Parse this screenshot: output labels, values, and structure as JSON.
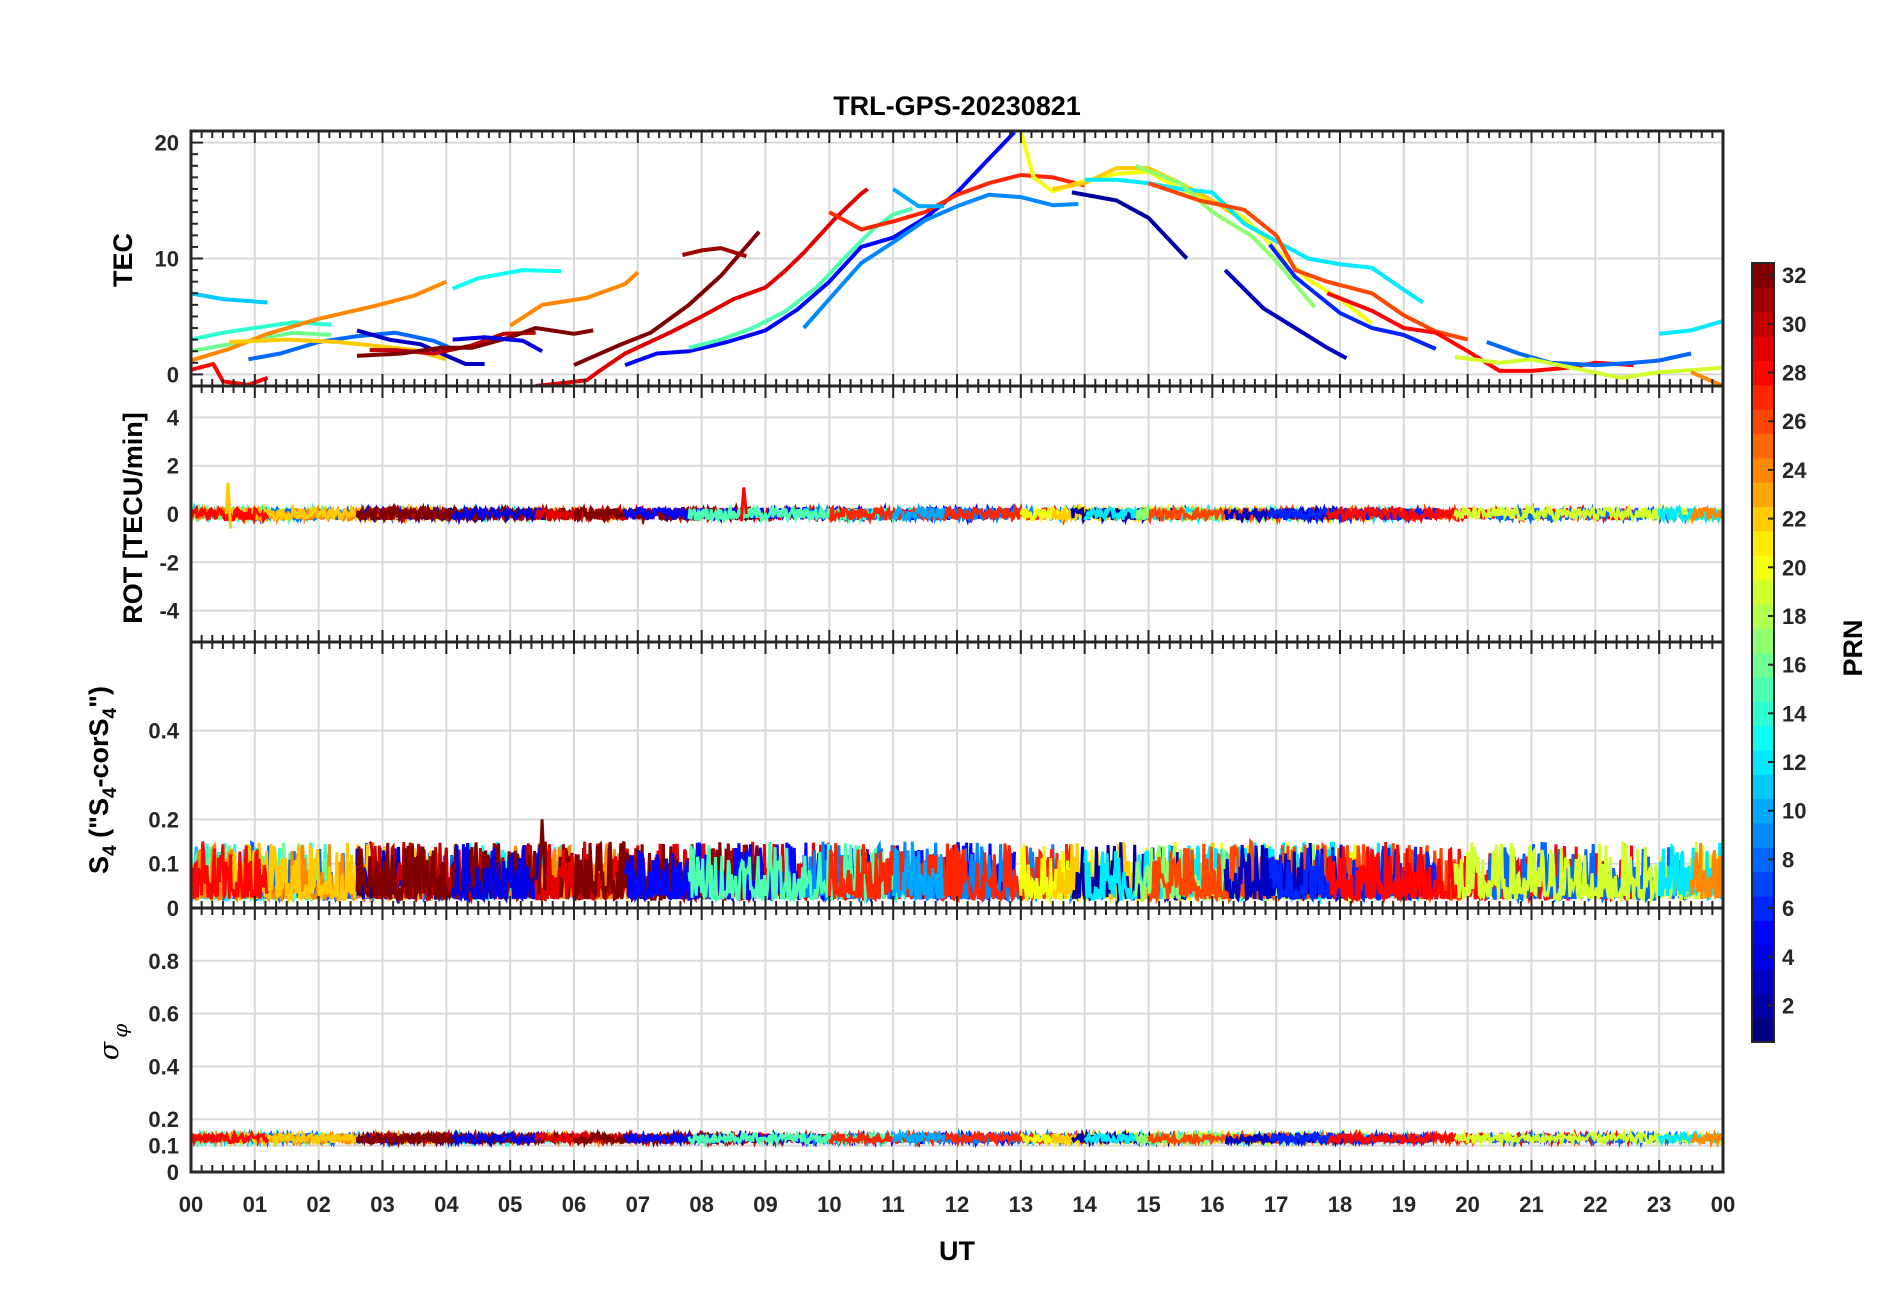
{
  "chart_data": [
    {
      "panel": "tec",
      "type": "line",
      "title": "TRL-GPS-20230821",
      "ylabel": "TEC",
      "ylim": [
        -1,
        21
      ],
      "yticks": [
        0,
        10,
        20
      ],
      "series": [
        {
          "prn": 11,
          "points": [
            [
              0,
              7
            ],
            [
              0.5,
              6.5
            ],
            [
              1.2,
              6.2
            ]
          ]
        },
        {
          "prn": 13,
          "points": [
            [
              4.1,
              7.4
            ],
            [
              4.5,
              8.3
            ],
            [
              5.2,
              9
            ],
            [
              5.8,
              8.9
            ]
          ]
        },
        {
          "prn": 14,
          "points": [
            [
              0,
              3
            ],
            [
              0.5,
              3.6
            ],
            [
              1,
              4
            ],
            [
              1.6,
              4.5
            ],
            [
              2.2,
              4.3
            ]
          ]
        },
        {
          "prn": 16,
          "points": [
            [
              0,
              2
            ],
            [
              0.5,
              2.5
            ],
            [
              1,
              3
            ],
            [
              1.6,
              3.6
            ],
            [
              2.2,
              3.4
            ]
          ]
        },
        {
          "prn": 8,
          "points": [
            [
              0.9,
              1.3
            ],
            [
              1.4,
              1.8
            ],
            [
              2,
              2.8
            ],
            [
              2.6,
              3.3
            ],
            [
              3.2,
              3.6
            ],
            [
              3.8,
              2.9
            ],
            [
              4.1,
              2.2
            ]
          ]
        },
        {
          "prn": 24,
          "points": [
            [
              0,
              1.2
            ],
            [
              0.6,
              2.2
            ],
            [
              1.2,
              3.5
            ],
            [
              2,
              4.8
            ],
            [
              2.8,
              5.8
            ],
            [
              3.5,
              6.8
            ],
            [
              4,
              8
            ]
          ]
        },
        {
          "prn": 24,
          "points": [
            [
              5,
              4.2
            ],
            [
              5.5,
              6
            ],
            [
              6.2,
              6.6
            ],
            [
              6.8,
              7.8
            ],
            [
              7,
              8.8
            ]
          ]
        },
        {
          "prn": 22,
          "points": [
            [
              0.6,
              2.8
            ],
            [
              1.5,
              3
            ],
            [
              2.3,
              2.8
            ],
            [
              3,
              2.4
            ],
            [
              3.5,
              2.1
            ],
            [
              4,
              1.3
            ]
          ]
        },
        {
          "prn": 28,
          "points": [
            [
              0,
              0.4
            ],
            [
              0.35,
              0.9
            ],
            [
              0.5,
              -0.6
            ],
            [
              0.9,
              -0.9
            ],
            [
              1.2,
              -0.3
            ]
          ]
        },
        {
          "prn": 3,
          "points": [
            [
              2.6,
              3.8
            ],
            [
              3.1,
              3
            ],
            [
              3.6,
              2.6
            ],
            [
              4.3,
              0.9
            ],
            [
              4.6,
              0.9
            ]
          ]
        },
        {
          "prn": 30,
          "points": [
            [
              2.8,
              2.1
            ],
            [
              3.2,
              2.1
            ],
            [
              3.8,
              1.8
            ],
            [
              4.4,
              2.5
            ],
            [
              4.9,
              3.5
            ],
            [
              5.4,
              3.6
            ]
          ]
        },
        {
          "prn": 32,
          "points": [
            [
              2.6,
              1.6
            ],
            [
              3.3,
              1.8
            ],
            [
              3.9,
              2.3
            ],
            [
              4.4,
              2.3
            ],
            [
              5,
              3.2
            ],
            [
              5.4,
              4
            ],
            [
              6,
              3.5
            ],
            [
              6.3,
              3.8
            ]
          ]
        },
        {
          "prn": 4,
          "points": [
            [
              4.1,
              3
            ],
            [
              4.6,
              3.2
            ],
            [
              5.2,
              2.9
            ],
            [
              5.5,
              2
            ]
          ]
        },
        {
          "prn": 29,
          "points": [
            [
              5.4,
              -1
            ],
            [
              5.9,
              -0.7
            ],
            [
              6.2,
              -0.5
            ],
            [
              6.4,
              0.3
            ],
            [
              6.8,
              1.8
            ],
            [
              7.5,
              3.6
            ],
            [
              8,
              5
            ],
            [
              8.5,
              6.5
            ],
            [
              9,
              7.5
            ],
            [
              9.3,
              8.9
            ],
            [
              9.6,
              10.5
            ],
            [
              10.1,
              13.5
            ],
            [
              10.5,
              15.6
            ],
            [
              10.6,
              16
            ]
          ]
        },
        {
          "prn": 32,
          "points": [
            [
              6,
              0.8
            ],
            [
              6.7,
              2.5
            ],
            [
              7.2,
              3.6
            ],
            [
              7.8,
              6
            ],
            [
              8.3,
              8.5
            ],
            [
              8.9,
              12.3
            ]
          ]
        },
        {
          "prn": 31,
          "points": [
            [
              7.7,
              10.3
            ],
            [
              8,
              10.7
            ],
            [
              8.3,
              10.9
            ],
            [
              8.7,
              10.2
            ]
          ]
        },
        {
          "prn": 5,
          "points": [
            [
              6.8,
              0.8
            ],
            [
              7.3,
              1.8
            ],
            [
              7.8,
              2
            ],
            [
              8.4,
              2.8
            ],
            [
              9,
              3.8
            ],
            [
              9.5,
              5.6
            ],
            [
              10,
              8
            ],
            [
              10.5,
              11
            ],
            [
              11,
              11.8
            ],
            [
              11.5,
              13.5
            ],
            [
              12,
              15.7
            ],
            [
              12.5,
              18.6
            ],
            [
              12.9,
              20.9
            ]
          ]
        },
        {
          "prn": 9,
          "points": [
            [
              9.6,
              4
            ],
            [
              10,
              6.5
            ],
            [
              10.5,
              9.6
            ],
            [
              11,
              11.4
            ],
            [
              11.5,
              13.3
            ],
            [
              12,
              14.5
            ],
            [
              12.5,
              15.5
            ],
            [
              13,
              15.3
            ],
            [
              13.5,
              14.6
            ],
            [
              13.9,
              14.7
            ]
          ]
        },
        {
          "prn": 15,
          "points": [
            [
              7.8,
              2.3
            ],
            [
              8.3,
              3
            ],
            [
              8.8,
              4
            ],
            [
              9.3,
              5.4
            ],
            [
              9.8,
              7.5
            ],
            [
              10.3,
              10.4
            ],
            [
              10.7,
              12.6
            ],
            [
              11,
              13.8
            ],
            [
              11.3,
              14.3
            ]
          ]
        },
        {
          "prn": 27,
          "points": [
            [
              10,
              14
            ],
            [
              10.5,
              12.5
            ],
            [
              11,
              13.2
            ],
            [
              11.5,
              14
            ],
            [
              12,
              15.5
            ],
            [
              12.5,
              16.5
            ],
            [
              13,
              17.2
            ],
            [
              13.5,
              17
            ],
            [
              14,
              16.3
            ]
          ]
        },
        {
          "prn": 10,
          "points": [
            [
              11,
              16
            ],
            [
              11.4,
              14.5
            ],
            [
              11.8,
              14.5
            ]
          ]
        },
        {
          "prn": 20,
          "points": [
            [
              13,
              21
            ],
            [
              13.2,
              17
            ],
            [
              13.5,
              15.8
            ],
            [
              14,
              16.7
            ],
            [
              14.5,
              17.3
            ],
            [
              15,
              17.5
            ],
            [
              15.5,
              16
            ],
            [
              16,
              15
            ],
            [
              16.5,
              13.5
            ],
            [
              16.9,
              11.3
            ],
            [
              17.5,
              8.2
            ],
            [
              18,
              6.5
            ],
            [
              18.5,
              4.4
            ]
          ]
        },
        {
          "prn": 22,
          "points": [
            [
              13.5,
              16
            ],
            [
              14,
              16.5
            ],
            [
              14.5,
              17.8
            ],
            [
              15,
              17.8
            ],
            [
              15.5,
              16.5
            ],
            [
              16,
              15
            ],
            [
              16.4,
              13.6
            ]
          ]
        },
        {
          "prn": 2,
          "points": [
            [
              13.8,
              15.7
            ],
            [
              14.5,
              15
            ],
            [
              15,
              13.5
            ],
            [
              15.6,
              10
            ]
          ]
        },
        {
          "prn": 12,
          "points": [
            [
              14,
              16.8
            ],
            [
              14.5,
              16.8
            ],
            [
              15,
              16.5
            ],
            [
              15.5,
              16
            ],
            [
              16,
              15.7
            ],
            [
              16.5,
              13
            ],
            [
              17,
              11.5
            ],
            [
              17.5,
              10
            ],
            [
              18,
              9.5
            ],
            [
              18.5,
              9.2
            ],
            [
              19,
              7.3
            ],
            [
              19.3,
              6.2
            ]
          ]
        },
        {
          "prn": 17,
          "points": [
            [
              14.8,
              18
            ],
            [
              15.5,
              16.5
            ],
            [
              16,
              14
            ],
            [
              16.6,
              12
            ],
            [
              17,
              9.8
            ],
            [
              17.6,
              5.8
            ]
          ]
        },
        {
          "prn": 26,
          "points": [
            [
              15,
              16.5
            ],
            [
              15.8,
              15
            ],
            [
              16.5,
              14.2
            ],
            [
              17,
              12
            ],
            [
              17.3,
              9
            ],
            [
              17.8,
              8
            ],
            [
              18.5,
              7
            ],
            [
              19,
              5.1
            ],
            [
              19.5,
              3.7
            ],
            [
              20,
              3
            ]
          ]
        },
        {
          "prn": 3,
          "points": [
            [
              16.2,
              9
            ],
            [
              16.8,
              5.7
            ],
            [
              17.3,
              4
            ],
            [
              17.8,
              2.3
            ],
            [
              18.1,
              1.4
            ]
          ]
        },
        {
          "prn": 6,
          "points": [
            [
              16.9,
              11.2
            ],
            [
              17.3,
              8.4
            ],
            [
              18,
              5.3
            ],
            [
              18.5,
              4
            ],
            [
              19,
              3.4
            ],
            [
              19.5,
              2.2
            ]
          ]
        },
        {
          "prn": 28,
          "points": [
            [
              17.8,
              7
            ],
            [
              18.5,
              5.5
            ],
            [
              19,
              4
            ],
            [
              19.5,
              3.6
            ],
            [
              20,
              2
            ],
            [
              20.5,
              0.3
            ],
            [
              21,
              0.3
            ],
            [
              21.6,
              0.6
            ],
            [
              22,
              1
            ],
            [
              22.6,
              0.8
            ]
          ]
        },
        {
          "prn": 8,
          "points": [
            [
              20.3,
              2.8
            ],
            [
              20.8,
              1.8
            ],
            [
              21.3,
              1
            ],
            [
              22,
              0.8
            ],
            [
              22.6,
              1
            ],
            [
              23,
              1.2
            ],
            [
              23.5,
              1.8
            ]
          ]
        },
        {
          "prn": 19,
          "points": [
            [
              19.8,
              1.5
            ],
            [
              20.5,
              1
            ],
            [
              21,
              1.3
            ],
            [
              21.7,
              0.5
            ],
            [
              22.4,
              -0.3
            ],
            [
              23,
              0.2
            ],
            [
              23.6,
              0.4
            ],
            [
              24,
              0.6
            ]
          ]
        },
        {
          "prn": 12,
          "points": [
            [
              23,
              3.5
            ],
            [
              23.5,
              3.8
            ],
            [
              24,
              4.6
            ]
          ]
        },
        {
          "prn": 24,
          "points": [
            [
              23.5,
              0.2
            ],
            [
              24,
              -1
            ]
          ]
        }
      ]
    },
    {
      "panel": "rot",
      "type": "line",
      "ylabel": "ROT [TECU/min]",
      "ylim": [
        -5.3,
        5.3
      ],
      "yticks": [
        -4,
        -2,
        0,
        2,
        4
      ],
      "note": "ROT fluctuations stay near 0 (mostly within ±0.7 TECU/min), with a spike to ~1.3 near 00:35 and ~1.1 near 08:40"
    },
    {
      "panel": "s4",
      "type": "line",
      "ylabel_main": "S",
      "ylabel_sub1": "4",
      "ylabel_mid": " (\"S",
      "ylabel_sub2": "4",
      "ylabel_mid2": "-corS",
      "ylabel_sub3": "4",
      "ylabel_end": "\")",
      "ylim": [
        0,
        0.6
      ],
      "yticks": [
        0,
        0.1,
        0.2,
        0.4
      ],
      "note": "S4 values mostly between 0.02 and 0.15, peaks to ~0.2 near 05:30"
    },
    {
      "panel": "sigma",
      "type": "line",
      "ylabel": "σ",
      "ylabel_sub": "φ",
      "ylim": [
        0,
        1
      ],
      "yticks": [
        0,
        0.1,
        0.2,
        0.4,
        0.6,
        0.8
      ],
      "note": "Phase scintillation index stays around 0.1-0.15 all day"
    }
  ],
  "x_axis": {
    "xlabel": "UT",
    "xlim": [
      0,
      24
    ],
    "ticks": [
      "00",
      "01",
      "02",
      "03",
      "04",
      "05",
      "06",
      "07",
      "08",
      "09",
      "10",
      "11",
      "12",
      "13",
      "14",
      "15",
      "16",
      "17",
      "18",
      "19",
      "20",
      "21",
      "22",
      "23",
      "00"
    ]
  },
  "colorbar": {
    "label": "PRN",
    "range": [
      1,
      32
    ],
    "ticks": [
      2,
      4,
      6,
      8,
      10,
      12,
      14,
      16,
      18,
      20,
      22,
      24,
      26,
      28,
      30,
      32
    ],
    "colormap": "jet"
  }
}
